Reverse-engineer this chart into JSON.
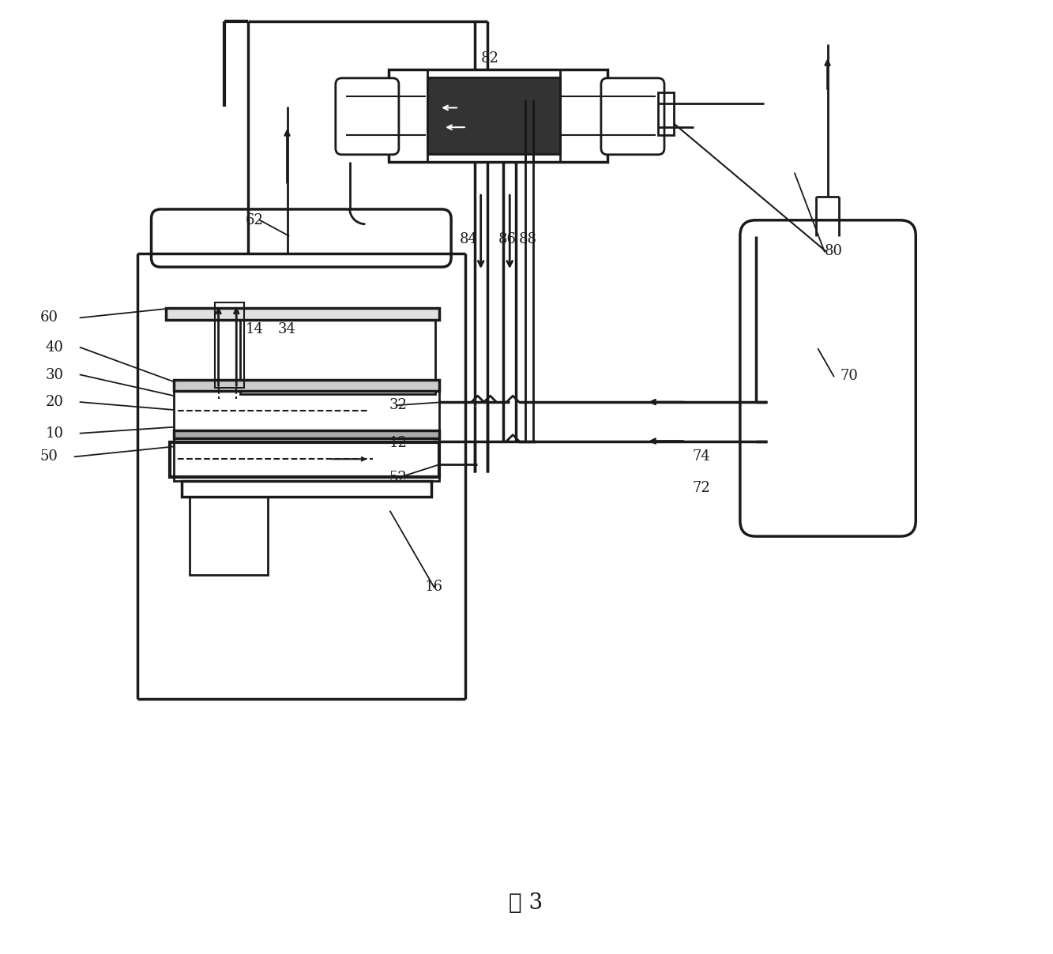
{
  "title": "图 3",
  "bg_color": "#ffffff",
  "line_color": "#1a1a1a",
  "fig_width": 13.33,
  "fig_height": 12.08,
  "labels": [
    [
      "10",
      62,
      548
    ],
    [
      "20",
      62,
      508
    ],
    [
      "30",
      62,
      473
    ],
    [
      "40",
      62,
      438
    ],
    [
      "50",
      55,
      578
    ],
    [
      "60",
      55,
      400
    ],
    [
      "62",
      318,
      275
    ],
    [
      "12",
      502,
      560
    ],
    [
      "14",
      318,
      415
    ],
    [
      "16",
      548,
      745
    ],
    [
      "32",
      502,
      512
    ],
    [
      "34",
      360,
      415
    ],
    [
      "52",
      502,
      605
    ],
    [
      "70",
      1080,
      475
    ],
    [
      "72",
      890,
      618
    ],
    [
      "74",
      890,
      578
    ],
    [
      "80",
      1060,
      315
    ],
    [
      "82",
      620,
      68
    ],
    [
      "84",
      592,
      300
    ],
    [
      "86",
      642,
      300
    ],
    [
      "88",
      668,
      300
    ]
  ]
}
